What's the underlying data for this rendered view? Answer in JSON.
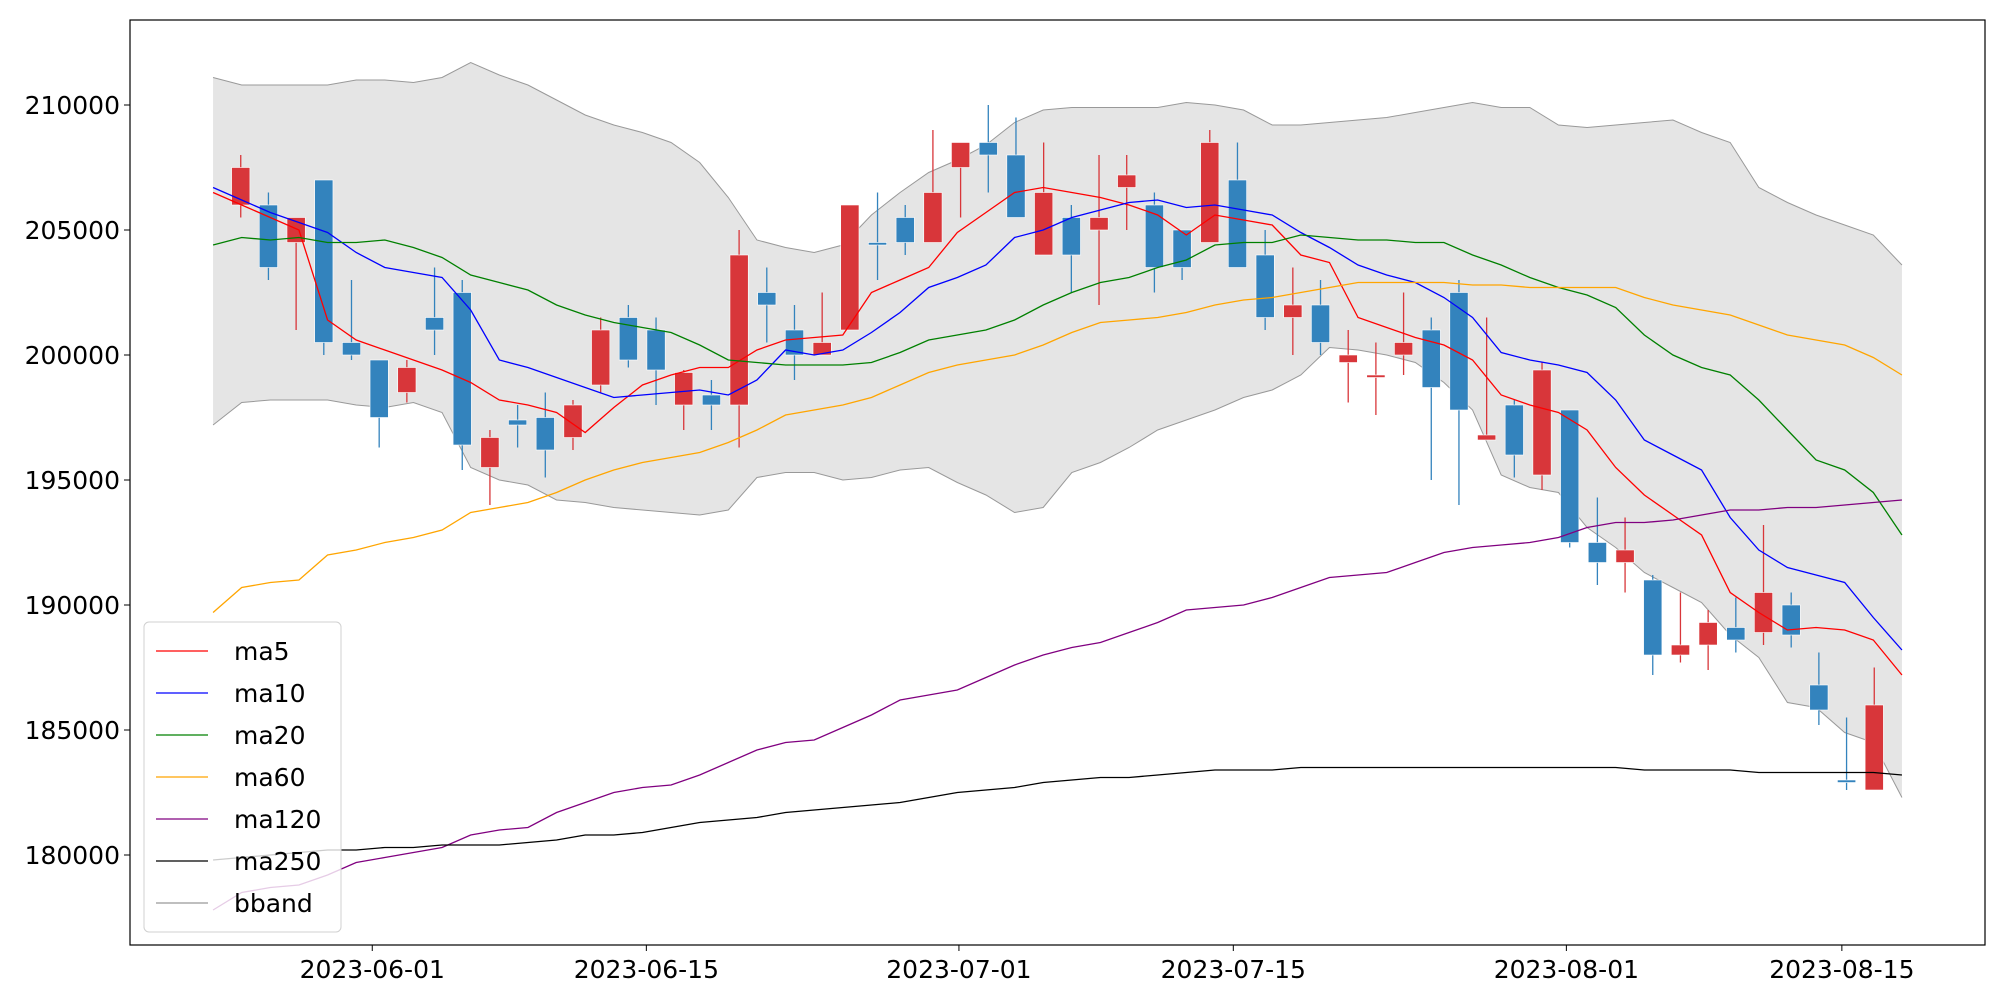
{
  "chart_data": {
    "type": "candlestick",
    "categories": [
      null,
      null,
      null,
      null,
      null,
      null,
      null,
      null,
      null,
      null,
      null,
      null,
      null,
      null,
      null,
      null,
      null,
      null,
      null,
      null,
      null,
      null,
      null,
      null,
      null,
      null,
      null,
      null,
      null,
      null,
      null,
      null,
      null,
      null,
      null,
      null,
      null,
      null,
      null,
      null,
      null,
      null,
      null,
      null,
      null,
      null,
      null,
      null,
      null,
      null,
      null,
      null,
      null,
      null,
      null,
      null,
      null,
      null,
      null,
      null
    ],
    "open": [
      206000,
      206000,
      204500,
      207000,
      200500,
      199800,
      198500,
      201500,
      202500,
      195500,
      197400,
      197500,
      196700,
      198800,
      201500,
      201000,
      198000,
      198400,
      198000,
      202500,
      201000,
      200000,
      201000,
      204500,
      205500,
      204500,
      207500,
      208500,
      208000,
      204000,
      205500,
      205000,
      206700,
      206000,
      205000,
      204500,
      207000,
      204000,
      201500,
      202000,
      199700,
      199100,
      200000,
      201000,
      202500,
      196600,
      198000,
      195200,
      197800,
      192500,
      191700,
      191000,
      188000,
      188400,
      189100,
      188900,
      190000,
      186800,
      183000,
      182600
    ],
    "high": [
      208000,
      206500,
      205500,
      207000,
      203000,
      199800,
      199800,
      203500,
      203000,
      197000,
      198000,
      198500,
      198200,
      201500,
      202000,
      201500,
      199400,
      199000,
      205000,
      203500,
      202000,
      202500,
      206000,
      206500,
      206000,
      209000,
      208500,
      210000,
      209500,
      208500,
      206000,
      208000,
      208000,
      206500,
      205000,
      209000,
      208500,
      205000,
      203500,
      203000,
      201000,
      200500,
      202500,
      201500,
      203000,
      201500,
      198200,
      199700,
      197800,
      194300,
      193500,
      191200,
      190500,
      189800,
      190300,
      193200,
      190500,
      188100,
      185500,
      187500
    ],
    "low": [
      205500,
      203000,
      201000,
      200000,
      199800,
      196300,
      198100,
      200000,
      195400,
      194000,
      196300,
      195100,
      196200,
      198500,
      199500,
      198000,
      197000,
      197000,
      196300,
      200500,
      199000,
      200000,
      201000,
      203000,
      204000,
      204500,
      205500,
      206500,
      205500,
      204000,
      202500,
      202000,
      205000,
      202500,
      203000,
      204500,
      203500,
      201000,
      200000,
      200000,
      198100,
      197600,
      199200,
      195000,
      194000,
      196600,
      195100,
      194600,
      192300,
      190800,
      190500,
      187200,
      187700,
      187400,
      188100,
      188400,
      188300,
      185200,
      182600,
      182600
    ],
    "close": [
      207500,
      203500,
      205500,
      200500,
      200000,
      197500,
      199500,
      201000,
      196400,
      196700,
      197200,
      196200,
      198000,
      201000,
      199800,
      199400,
      199300,
      198000,
      204000,
      202000,
      200000,
      200500,
      206000,
      204400,
      204500,
      206500,
      208500,
      208000,
      205500,
      206500,
      204000,
      205500,
      207200,
      203500,
      203500,
      208500,
      203500,
      201500,
      202000,
      200500,
      200000,
      199200,
      200500,
      198700,
      197800,
      196800,
      196000,
      199400,
      192500,
      191700,
      192200,
      188000,
      188400,
      189300,
      188600,
      190500,
      188800,
      185800,
      182900,
      186000
    ],
    "up_color": "#d8363a",
    "down_color": "#3383bd",
    "series": [
      {
        "name": "ma5",
        "color": "red",
        "values": [
          206500,
          206000,
          205500,
          205000,
          201400,
          200600,
          200200,
          199800,
          199400,
          198900,
          198200,
          198000,
          197700,
          196900,
          197900,
          198800,
          199200,
          199500,
          199500,
          200200,
          200600,
          200700,
          200800,
          202500,
          203000,
          203500,
          204900,
          205700,
          206500,
          206700,
          206500,
          206300,
          206000,
          205600,
          204800,
          205600,
          205400,
          205200,
          204000,
          203700,
          201500,
          201100,
          200700,
          200400,
          199800,
          198400,
          198000,
          197700,
          197000,
          195500,
          194400,
          193600,
          192800,
          190500,
          189700,
          189000,
          189100,
          189000,
          188600,
          187200
        ]
      },
      {
        "name": "ma10",
        "color": "blue",
        "values": [
          206700,
          206200,
          205700,
          205300,
          204900,
          204100,
          203500,
          203300,
          203100,
          201800,
          199800,
          199500,
          199100,
          198700,
          198300,
          198400,
          198500,
          198600,
          198400,
          199000,
          200200,
          200000,
          200200,
          200900,
          201700,
          202700,
          203100,
          203600,
          204700,
          205000,
          205500,
          205800,
          206100,
          206200,
          205900,
          206000,
          205800,
          205600,
          204900,
          204300,
          203600,
          203200,
          202900,
          202300,
          201500,
          200100,
          199800,
          199600,
          199300,
          198200,
          196600,
          196000,
          195400,
          193500,
          192200,
          191500,
          191200,
          190900,
          189500,
          188200
        ]
      },
      {
        "name": "ma20",
        "color": "green",
        "values": [
          204400,
          204700,
          204600,
          204700,
          204500,
          204500,
          204600,
          204300,
          203900,
          203200,
          202900,
          202600,
          202000,
          201600,
          201300,
          201100,
          200900,
          200400,
          199800,
          199700,
          199600,
          199600,
          199600,
          199700,
          200100,
          200600,
          200800,
          201000,
          201400,
          202000,
          202500,
          202900,
          203100,
          203500,
          203800,
          204400,
          204500,
          204500,
          204800,
          204700,
          204600,
          204600,
          204500,
          204500,
          204000,
          203600,
          203100,
          202700,
          202400,
          201900,
          200800,
          200000,
          199500,
          199200,
          198200,
          197000,
          195800,
          195400,
          194500,
          192800
        ]
      },
      {
        "name": "ma60",
        "color": "orange",
        "values": [
          189700,
          190700,
          190900,
          191000,
          192000,
          192200,
          192500,
          192700,
          193000,
          193700,
          193900,
          194100,
          194500,
          195000,
          195400,
          195700,
          195900,
          196100,
          196500,
          197000,
          197600,
          197800,
          198000,
          198300,
          198800,
          199300,
          199600,
          199800,
          200000,
          200400,
          200900,
          201300,
          201400,
          201500,
          201700,
          202000,
          202200,
          202300,
          202500,
          202700,
          202900,
          202900,
          202900,
          202900,
          202800,
          202800,
          202700,
          202700,
          202700,
          202700,
          202300,
          202000,
          201800,
          201600,
          201200,
          200800,
          200600,
          200400,
          199900,
          199200
        ]
      },
      {
        "name": "ma120",
        "color": "purple",
        "values": [
          177800,
          178500,
          178700,
          178800,
          179200,
          179700,
          179900,
          180100,
          180300,
          180800,
          181000,
          181100,
          181700,
          182100,
          182500,
          182700,
          182800,
          183200,
          183700,
          184200,
          184500,
          184600,
          185100,
          185600,
          186200,
          186400,
          186600,
          187100,
          187600,
          188000,
          188300,
          188500,
          188900,
          189300,
          189800,
          189900,
          190000,
          190300,
          190700,
          191100,
          191200,
          191300,
          191700,
          192100,
          192300,
          192400,
          192500,
          192700,
          193100,
          193300,
          193300,
          193400,
          193600,
          193800,
          193800,
          193900,
          193900,
          194000,
          194100,
          194200
        ]
      },
      {
        "name": "ma250",
        "color": "black",
        "values": [
          179800,
          179900,
          180000,
          180100,
          180200,
          180200,
          180300,
          180300,
          180400,
          180400,
          180400,
          180500,
          180600,
          180800,
          180800,
          180900,
          181100,
          181300,
          181400,
          181500,
          181700,
          181800,
          181900,
          182000,
          182100,
          182300,
          182500,
          182600,
          182700,
          182900,
          183000,
          183100,
          183100,
          183200,
          183300,
          183400,
          183400,
          183400,
          183500,
          183500,
          183500,
          183500,
          183500,
          183500,
          183500,
          183500,
          183500,
          183500,
          183500,
          183500,
          183400,
          183400,
          183400,
          183400,
          183300,
          183300,
          183300,
          183300,
          183300,
          183200
        ]
      }
    ],
    "band": {
      "name": "bband",
      "color": "#999999",
      "fill": "#e5e5e5",
      "upper": [
        211100,
        210800,
        210800,
        210800,
        210800,
        211000,
        211000,
        210900,
        211100,
        211700,
        211200,
        210800,
        210200,
        209600,
        209200,
        208900,
        208500,
        207700,
        206300,
        204600,
        204300,
        204100,
        204400,
        205600,
        206500,
        207300,
        207800,
        208400,
        209300,
        209800,
        209900,
        209900,
        209900,
        209900,
        210100,
        210000,
        209800,
        209200,
        209200,
        209300,
        209400,
        209500,
        209700,
        209900,
        210100,
        209900,
        209900,
        209200,
        209100,
        209200,
        209300,
        209400,
        208900,
        208500,
        206700,
        206100,
        205600,
        205200,
        204800,
        203600
      ],
      "lower": [
        197200,
        198100,
        198200,
        198200,
        198200,
        198000,
        197900,
        198100,
        197700,
        195500,
        195000,
        194800,
        194200,
        194100,
        193900,
        193800,
        193700,
        193600,
        193800,
        195100,
        195300,
        195300,
        195000,
        195100,
        195400,
        195500,
        194900,
        194400,
        193700,
        193900,
        195300,
        195700,
        196300,
        197000,
        197400,
        197800,
        198300,
        198600,
        199200,
        200300,
        200200,
        200000,
        199700,
        198900,
        197800,
        195200,
        194700,
        194500,
        193100,
        192300,
        191300,
        190700,
        190100,
        188800,
        187900,
        186100,
        185900,
        184900,
        184500,
        182300
      ]
    },
    "xlim": [
      -4,
      63
    ],
    "xticks": [
      {
        "value": 4.75,
        "label": "2023-06-01"
      },
      {
        "value": 14.65,
        "label": "2023-06-15"
      },
      {
        "value": 25.94,
        "label": "2023-07-01"
      },
      {
        "value": 35.85,
        "label": "2023-07-15"
      },
      {
        "value": 47.88,
        "label": "2023-08-01"
      },
      {
        "value": 57.83,
        "label": "2023-08-15"
      }
    ],
    "ylim": [
      176400,
      213400
    ],
    "yticks": [
      180000,
      185000,
      190000,
      195000,
      200000,
      205000,
      210000
    ],
    "legend": "lower left"
  }
}
